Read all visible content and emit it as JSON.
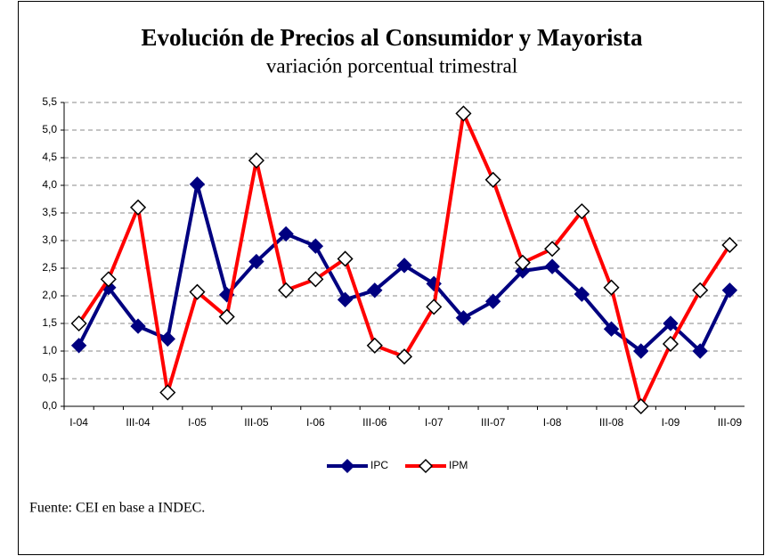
{
  "chart_data": {
    "type": "line",
    "title": "Evolución de Precios al Consumidor y Mayorista",
    "subtitle": "variación porcentual trimestral",
    "source": "Fuente: CEI en base a INDEC.",
    "categories": [
      "I-04",
      null,
      "III-04",
      null,
      "I-05",
      null,
      "III-05",
      null,
      "I-06",
      null,
      "III-06",
      null,
      "I-07",
      null,
      "III-07",
      null,
      "I-08",
      null,
      "III-08",
      null,
      "I-09",
      null,
      "III-09"
    ],
    "series": [
      {
        "name": "IPC",
        "color": "#000080",
        "values": [
          1.1,
          2.15,
          1.45,
          1.22,
          4.02,
          2.02,
          2.62,
          3.12,
          2.9,
          1.93,
          2.1,
          2.55,
          2.22,
          1.6,
          1.9,
          2.45,
          2.53,
          2.03,
          1.4,
          1.0,
          1.5,
          1.0,
          2.1
        ]
      },
      {
        "name": "IPM",
        "color": "#ff0000",
        "values": [
          1.5,
          2.3,
          3.6,
          0.25,
          2.07,
          1.62,
          4.45,
          2.1,
          2.3,
          2.67,
          1.1,
          0.9,
          1.8,
          5.3,
          4.1,
          2.6,
          2.85,
          3.53,
          2.15,
          0.0,
          1.13,
          2.1,
          2.92
        ]
      }
    ],
    "ylim": [
      0,
      5.5
    ],
    "yticks": [
      {
        "value": 0,
        "label": "0,0"
      },
      {
        "value": 0.5,
        "label": "0,5"
      },
      {
        "value": 1,
        "label": "1,0"
      },
      {
        "value": 1.5,
        "label": "1,5"
      },
      {
        "value": 2,
        "label": "2,0"
      },
      {
        "value": 2.5,
        "label": "2,5"
      },
      {
        "value": 3,
        "label": "3,0"
      },
      {
        "value": 3.5,
        "label": "3,5"
      },
      {
        "value": 4,
        "label": "4,0"
      },
      {
        "value": 4.5,
        "label": "4,5"
      },
      {
        "value": 5,
        "label": "5,0"
      },
      {
        "value": 5.5,
        "label": "5,5"
      }
    ],
    "grid": true,
    "legend": "bottom"
  }
}
